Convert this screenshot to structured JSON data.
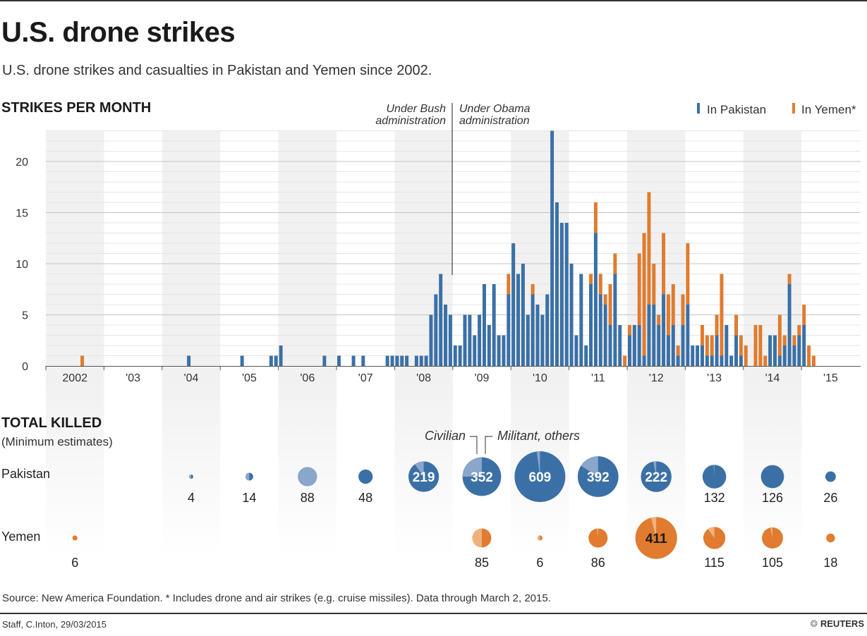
{
  "header": {
    "title": "U.S. drone strikes",
    "subtitle": "U.S. drone strikes and casualties in Pakistan and Yemen since 2002."
  },
  "colors": {
    "pakistan": "#3a70a6",
    "pakistan_civilian": "#8aa6cb",
    "yemen": "#e07b2f",
    "yemen_civilian": "#efb27c",
    "band": "#f1f1f1"
  },
  "chart_data": [
    {
      "type": "bar",
      "stacked": true,
      "title": "STRIKES PER MONTH",
      "x_unit": "month",
      "x_start": "2002-01",
      "x_end": "2015-03",
      "x_tick_labels": [
        "2002",
        "'03",
        "'04",
        "'05",
        "'06",
        "'07",
        "'08",
        "'09",
        "'10",
        "'11",
        "'12",
        "'13",
        "'14",
        "'15"
      ],
      "y_ticks": [
        0,
        5,
        10,
        15,
        20
      ],
      "ylim": [
        0,
        23
      ],
      "grid": true,
      "legend_position": "top-right",
      "annotations": {
        "bush": "Under Bush administration",
        "bush_line1": "Under Bush",
        "bush_line2": "administration",
        "obama_line1": "Under Obama",
        "obama_line2": "administration",
        "divider_month": "2009-01"
      },
      "series": [
        {
          "name": "In Pakistan",
          "color": "#3a70a6",
          "values": [
            0,
            0,
            0,
            0,
            0,
            0,
            0,
            0,
            0,
            0,
            0,
            0,
            0,
            0,
            0,
            0,
            0,
            0,
            0,
            0,
            0,
            0,
            0,
            0,
            0,
            0,
            0,
            0,
            0,
            1,
            0,
            0,
            0,
            0,
            0,
            0,
            0,
            0,
            0,
            0,
            1,
            0,
            0,
            0,
            0,
            0,
            1,
            1,
            2,
            0,
            0,
            0,
            0,
            0,
            0,
            0,
            0,
            1,
            0,
            0,
            1,
            0,
            0,
            1,
            0,
            1,
            0,
            0,
            0,
            0,
            1,
            1,
            1,
            1,
            1,
            0,
            1,
            1,
            1,
            5,
            7,
            9,
            6,
            5,
            2,
            2,
            5,
            5,
            3,
            5,
            8,
            4,
            8,
            3,
            3,
            7,
            12,
            9,
            10,
            5,
            7,
            6,
            5,
            7,
            23,
            16,
            14,
            14,
            10,
            3,
            9,
            2,
            8,
            13,
            7,
            6,
            4,
            9,
            4,
            0,
            3,
            4,
            4,
            1,
            6,
            6,
            4,
            7,
            3,
            4,
            1,
            4,
            6,
            2,
            2,
            2,
            1,
            1,
            3,
            1,
            4,
            1,
            3,
            1,
            0,
            0,
            0,
            0,
            0,
            3,
            3,
            1,
            2,
            8,
            2,
            3,
            4,
            0,
            0
          ]
        },
        {
          "name": "In Yemen*",
          "color": "#e07b2f",
          "values": [
            0,
            0,
            0,
            0,
            0,
            0,
            0,
            1,
            0,
            0,
            0,
            0,
            0,
            0,
            0,
            0,
            0,
            0,
            0,
            0,
            0,
            0,
            0,
            0,
            0,
            0,
            0,
            0,
            0,
            0,
            0,
            0,
            0,
            0,
            0,
            0,
            0,
            0,
            0,
            0,
            0,
            0,
            0,
            0,
            0,
            0,
            0,
            0,
            0,
            0,
            0,
            0,
            0,
            0,
            0,
            0,
            0,
            0,
            0,
            0,
            0,
            0,
            0,
            0,
            0,
            0,
            0,
            0,
            0,
            0,
            0,
            0,
            0,
            0,
            0,
            0,
            0,
            0,
            0,
            0,
            0,
            0,
            0,
            0,
            0,
            0,
            0,
            0,
            0,
            0,
            0,
            0,
            0,
            0,
            0,
            2,
            0,
            0,
            0,
            0,
            1,
            0,
            0,
            0,
            0,
            0,
            0,
            0,
            0,
            0,
            0,
            0,
            1,
            3,
            2,
            1,
            4,
            2,
            0,
            1,
            1,
            0,
            7,
            12,
            11,
            4,
            1,
            6,
            4,
            4,
            1,
            3,
            6,
            0,
            0,
            2,
            2,
            2,
            2,
            8,
            0,
            0,
            2,
            2,
            2,
            0,
            4,
            4,
            1,
            0,
            0,
            4,
            1,
            1,
            1,
            1,
            2,
            2,
            1
          ]
        }
      ]
    },
    {
      "type": "bubble",
      "title": "TOTAL KILLED",
      "subtitle": "(Minimum estimates)",
      "legend": {
        "civilian": "Civilian",
        "militant": "Militant, others"
      },
      "rows": [
        {
          "name": "Pakistan",
          "points": [
            {
              "year": 2004,
              "total": 4,
              "civilian_share": 0.5
            },
            {
              "year": 2005,
              "total": 14,
              "civilian_share": 0.5
            },
            {
              "year": 2006,
              "total": 88,
              "civilian_share": 1.0
            },
            {
              "year": 2007,
              "total": 48,
              "civilian_share": 0
            },
            {
              "year": 2008,
              "total": 219,
              "civilian_share": 0.1
            },
            {
              "year": 2009,
              "total": 352,
              "civilian_share": 0.25
            },
            {
              "year": 2010,
              "total": 609,
              "civilian_share": 0.02
            },
            {
              "year": 2011,
              "total": 392,
              "civilian_share": 0.16
            },
            {
              "year": 2012,
              "total": 222,
              "civilian_share": 0.03
            },
            {
              "year": 2013,
              "total": 132,
              "civilian_share": 0.01
            },
            {
              "year": 2014,
              "total": 126,
              "civilian_share": 0
            },
            {
              "year": 2015,
              "total": 26,
              "civilian_share": 0
            }
          ]
        },
        {
          "name": "Yemen",
          "points": [
            {
              "year": 2002,
              "total": 6,
              "civilian_share": 0
            },
            {
              "year": 2009,
              "total": 85,
              "civilian_share": 0.5
            },
            {
              "year": 2010,
              "total": 6,
              "civilian_share": 0.5
            },
            {
              "year": 2011,
              "total": 86,
              "civilian_share": 0.02
            },
            {
              "year": 2012,
              "total": 411,
              "civilian_share": 0.04
            },
            {
              "year": 2013,
              "total": 115,
              "civilian_share": 0.1
            },
            {
              "year": 2014,
              "total": 105,
              "civilian_share": 0.03
            },
            {
              "year": 2015,
              "total": 18,
              "civilian_share": 0
            }
          ]
        }
      ]
    }
  ],
  "footer": {
    "source": "Source: New America Foundation. * Includes drone and air strikes (e.g. cruise missiles). Data through March 2, 2015.",
    "credit": "Staff, C.Inton, 29/03/2015",
    "brand": "REUTERS"
  }
}
